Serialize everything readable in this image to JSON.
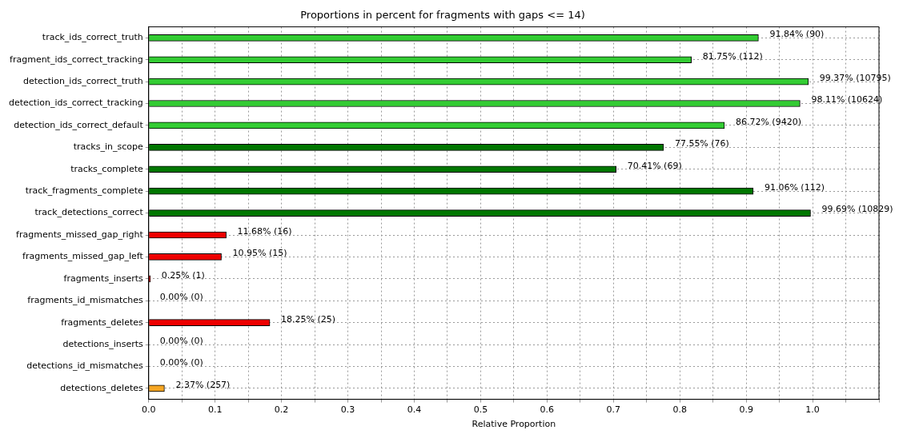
{
  "chart_data": {
    "type": "bar",
    "orientation": "horizontal",
    "title": "Proportions in percent for fragments with gaps <= 14)",
    "xlabel": "Relative Proportion",
    "categories": [
      "track_ids_correct_truth",
      "fragment_ids_correct_tracking",
      "detection_ids_correct_truth",
      "detection_ids_correct_tracking",
      "detection_ids_correct_default",
      "tracks_in_scope",
      "tracks_complete",
      "track_fragments_complete",
      "track_detections_correct",
      "fragments_missed_gap_right",
      "fragments_missed_gap_left",
      "fragments_inserts",
      "fragments_id_mismatches",
      "fragments_deletes",
      "detections_inserts",
      "detections_id_mismatches",
      "detections_deletes"
    ],
    "values": [
      0.9184,
      0.8175,
      0.9937,
      0.9811,
      0.8672,
      0.7755,
      0.7041,
      0.9106,
      0.9969,
      0.1168,
      0.1095,
      0.0025,
      0,
      0.1825,
      0,
      0,
      0.0237
    ],
    "colors": [
      "#33cc33",
      "#33cc33",
      "#33cc33",
      "#33cc33",
      "#33cc33",
      "#007700",
      "#007700",
      "#007700",
      "#007700",
      "#ee0000",
      "#ee0000",
      "#ee0000",
      "#ee0000",
      "#ee0000",
      "#ee0000",
      "#ee0000",
      "#f5a623"
    ],
    "value_labels": [
      "91.84% (90)",
      "81.75% (112)",
      "99.37% (10795)",
      "98.11% (10624)",
      "86.72% (9420)",
      "77.55% (76)",
      "70.41% (69)",
      "91.06% (112)",
      "99.69% (10829)",
      "11.68% (16)",
      "10.95% (15)",
      "0.25% (1)",
      "0.00% (0)",
      "18.25% (25)",
      "0.00% (0)",
      "0.00% (0)",
      "2.37% (257)"
    ],
    "xlim": [
      0,
      1.1
    ],
    "xticks": [
      {
        "value": 0,
        "label": "0.0"
      },
      {
        "value": 0.05,
        "label": null
      },
      {
        "value": 0.1,
        "label": "0.1"
      },
      {
        "value": 0.15,
        "label": null
      },
      {
        "value": 0.2,
        "label": "0.2"
      },
      {
        "value": 0.25,
        "label": null
      },
      {
        "value": 0.3,
        "label": "0.3"
      },
      {
        "value": 0.35,
        "label": null
      },
      {
        "value": 0.4,
        "label": "0.4"
      },
      {
        "value": 0.45,
        "label": null
      },
      {
        "value": 0.5,
        "label": "0.5"
      },
      {
        "value": 0.55,
        "label": null
      },
      {
        "value": 0.6,
        "label": "0.6"
      },
      {
        "value": 0.65,
        "label": null
      },
      {
        "value": 0.7,
        "label": "0.7"
      },
      {
        "value": 0.75,
        "label": null
      },
      {
        "value": 0.8,
        "label": "0.8"
      },
      {
        "value": 0.85,
        "label": null
      },
      {
        "value": 0.9,
        "label": "0.9"
      },
      {
        "value": 0.95,
        "label": null
      },
      {
        "value": 1.0,
        "label": "1.0"
      },
      {
        "value": 1.05,
        "label": null
      },
      {
        "value": 1.1,
        "label": null
      }
    ],
    "grid": true,
    "legend": false
  }
}
